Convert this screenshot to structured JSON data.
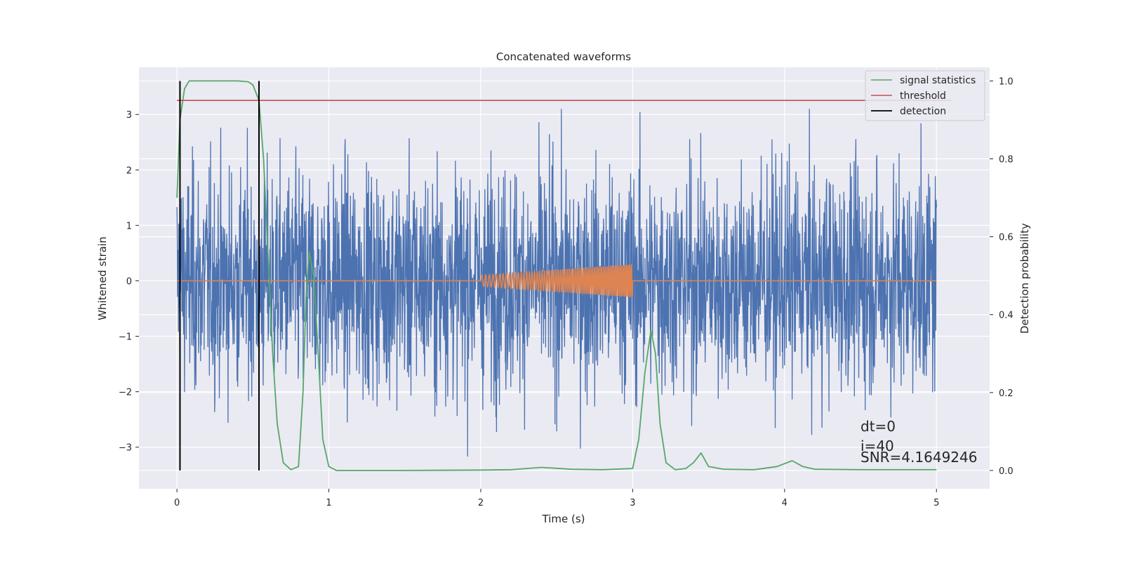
{
  "chart_data": {
    "type": "line",
    "title": "Concatenated waveforms",
    "xlabel": "Time (s)",
    "ylabel": "Whitened strain",
    "y2label": "Detection probability",
    "xlim": [
      -0.25,
      5.35
    ],
    "ylim": [
      -3.75,
      3.85
    ],
    "y2lim": [
      -0.047,
      1.035
    ],
    "xticks": [
      0,
      1,
      2,
      3,
      4,
      5
    ],
    "xtick_labels": [
      "0",
      "1",
      "2",
      "3",
      "4",
      "5"
    ],
    "yticks": [
      3,
      2,
      1,
      0,
      -1,
      -2,
      -3
    ],
    "ytick_labels": [
      "3",
      "2",
      "1",
      "0",
      "−1",
      "−2",
      "−3"
    ],
    "y2ticks": [
      1.0,
      0.8,
      0.6,
      0.4,
      0.2,
      0.0
    ],
    "y2tick_labels": [
      "1.0",
      "0.8",
      "0.6",
      "0.4",
      "0.2",
      "0.0"
    ],
    "grid": true,
    "legend_position": "top-right",
    "legend": [
      {
        "label": "signal statistics",
        "color": "#55a868"
      },
      {
        "label": "threshold",
        "color": "#c44e52"
      },
      {
        "label": "detection",
        "color": "#000000"
      }
    ],
    "series": [
      {
        "name": "signal statistics",
        "axis": "right",
        "color": "#55a868",
        "x": [
          0,
          0.02,
          0.05,
          0.08,
          0.12,
          0.2,
          0.3,
          0.4,
          0.47,
          0.5,
          0.52,
          0.54,
          0.57,
          0.6,
          0.63,
          0.66,
          0.7,
          0.75,
          0.8,
          0.83,
          0.85,
          0.87,
          0.9,
          0.93,
          0.96,
          1.0,
          1.05,
          1.2,
          1.5,
          2.0,
          2.2,
          2.4,
          2.6,
          2.8,
          3.0,
          3.04,
          3.08,
          3.12,
          3.15,
          3.18,
          3.22,
          3.28,
          3.35,
          3.4,
          3.45,
          3.5,
          3.6,
          3.8,
          3.95,
          4.05,
          4.12,
          4.2,
          4.5,
          5.0
        ],
        "y": [
          0.7,
          0.9,
          0.98,
          1.0,
          1.0,
          1.0,
          1.0,
          1.0,
          0.998,
          0.99,
          0.97,
          0.95,
          0.8,
          0.55,
          0.3,
          0.12,
          0.02,
          0.002,
          0.01,
          0.2,
          0.45,
          0.56,
          0.5,
          0.3,
          0.08,
          0.01,
          0.0,
          0.0,
          0.0,
          0.001,
          0.002,
          0.008,
          0.003,
          0.002,
          0.005,
          0.08,
          0.25,
          0.36,
          0.3,
          0.12,
          0.02,
          0.002,
          0.005,
          0.02,
          0.045,
          0.01,
          0.003,
          0.002,
          0.01,
          0.025,
          0.01,
          0.003,
          0.002,
          0.002
        ]
      },
      {
        "name": "threshold",
        "axis": "right",
        "color": "#c44e52",
        "x": [
          0,
          5.1
        ],
        "y": [
          0.95,
          0.95
        ]
      },
      {
        "name": "detection",
        "axis": "right",
        "color": "#000000",
        "type": "vlines",
        "x": [
          0.02,
          0.54
        ],
        "y": [
          0.0,
          1.0
        ]
      },
      {
        "name": "",
        "axis": "left",
        "color": "#4c72b0",
        "type": "noise",
        "x_range": [
          0,
          5
        ],
        "amplitude_typical": 1.0,
        "peak_positive": 3.1,
        "peak_negative": -3.5
      },
      {
        "name": "",
        "axis": "left",
        "color": "#dd8452",
        "type": "chirp",
        "x_range": [
          0,
          5
        ],
        "chirp_range": [
          2.0,
          3.0
        ],
        "amplitude_start": 0.1,
        "amplitude_end": 0.3
      }
    ],
    "annotations": [
      "dt=0",
      "i=40",
      "SNR=4.1649246"
    ]
  },
  "colors": {
    "axes_bg": "#eaeaf2",
    "grid": "#ffffff",
    "noise": "#4c72b0",
    "chirp": "#dd8452",
    "signal": "#55a868",
    "threshold": "#c44e52",
    "detection": "#000000",
    "text": "#262626"
  }
}
